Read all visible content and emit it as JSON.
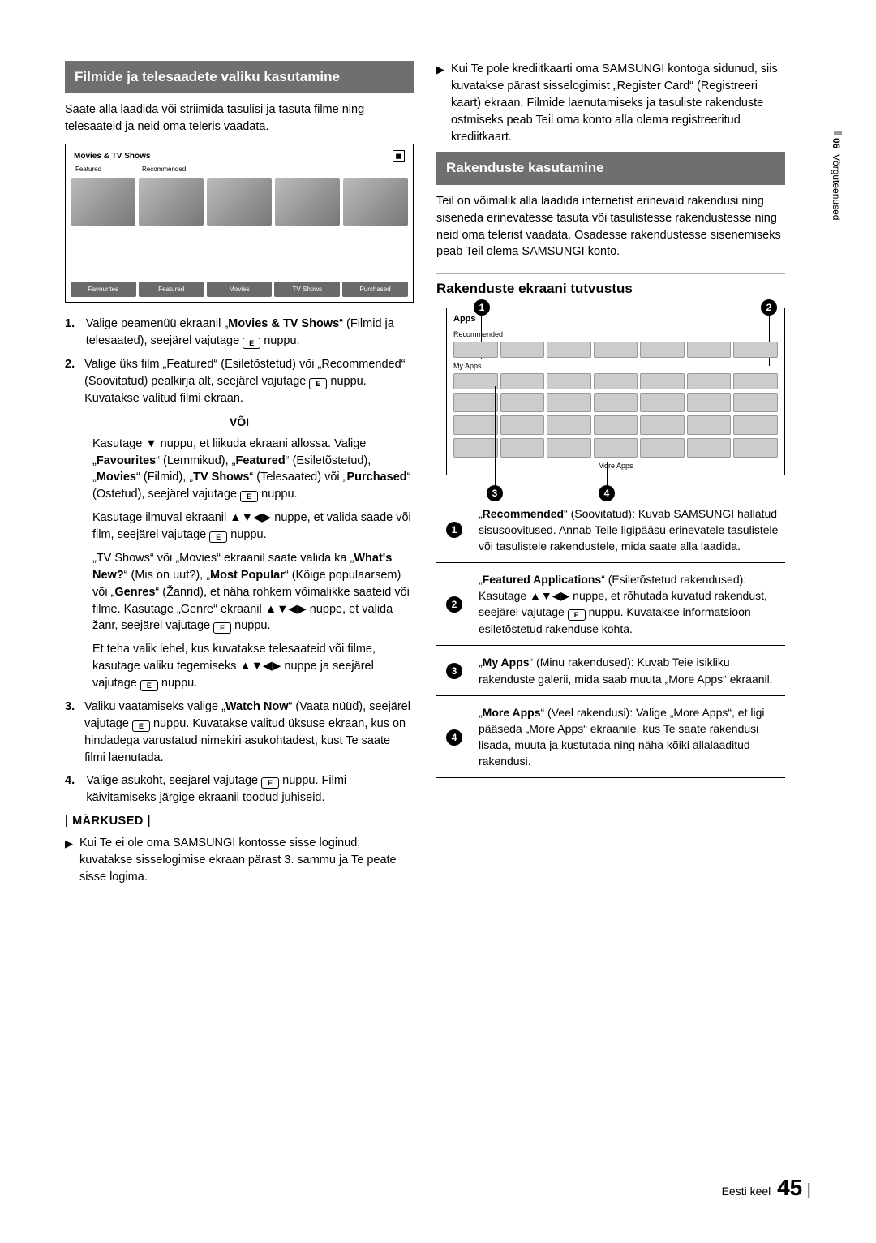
{
  "side": {
    "num": "06",
    "label": "Võrguteenused"
  },
  "left": {
    "h1": "Filmide ja telesaadete valiku kasutamine",
    "intro": "Saate alla laadida või striimida tasulisi ja tasuta filme ning telesaateid ja neid oma teleris vaadata.",
    "tv": {
      "title": "Movies & TV Shows",
      "subs": [
        "Featured",
        "Recommended"
      ],
      "tabs": [
        "Favourites",
        "Featured",
        "Movies",
        "TV Shows",
        "Purchased"
      ]
    },
    "voi": "VÕI",
    "s1a": "Valige peamenüü ekraanil „",
    "s1b": "Movies & TV Shows",
    "s1c": "“ (Filmid ja telesaated), seejärel vajutage ",
    "s1d": " nuppu.",
    "s2a": "Valige üks film „Featured“ (Esiletõstetud) või „Recommended“ (Soovitatud) pealkirja alt, seejärel vajutage ",
    "s2b": " nuppu. Kuvatakse valitud filmi ekraan.",
    "p2a": "Kasutage ▼ nuppu, et liikuda ekraani allossa. Valige „",
    "p2b": "Favourites",
    "p2c": "“ (Lemmikud), „",
    "p2d": "Featured",
    "p2e": "“ (Esiletõstetud), „",
    "p2f": "Movies",
    "p2g": "“ (Filmid), „",
    "p2h": "TV Shows",
    "p2i": "“ (Telesaated) või „",
    "p2j": "Purchased",
    "p2k": "“ (Ostetud), seejärel vajutage ",
    "p2l": " nuppu.",
    "p3a": "Kasutage ilmuval ekraanil ▲▼◀▶ nuppe, et valida saade või film, seejärel vajutage ",
    "p3b": " nuppu.",
    "p4a": "„TV Shows“ või „Movies“ ekraanil saate valida ka „",
    "p4b": "What's New?",
    "p4c": "“ (Mis on uut?), „",
    "p4d": "Most Popular",
    "p4e": "“ (Kõige populaarsem) või „",
    "p4f": "Genres",
    "p4g": "“ (Žanrid), et näha rohkem võimalikke saateid või filme. Kasutage „Genre“ ekraanil ▲▼◀▶ nuppe, et valida žanr, seejärel vajutage ",
    "p4h": " nuppu.",
    "p5a": "Et teha valik lehel, kus kuvatakse telesaateid või filme, kasutage valiku tegemiseks ▲▼◀▶ nuppe ja seejärel vajutage ",
    "p5b": " nuppu.",
    "s3a": "Valiku vaatamiseks valige „",
    "s3b": "Watch Now",
    "s3c": "“ (Vaata nüüd), seejärel vajutage ",
    "s3d": " nuppu. Kuvatakse valitud üksuse ekraan, kus on hindadega varustatud nimekiri asukohtadest, kust Te saate filmi laenutada.",
    "s4a": "Valige asukoht, seejärel vajutage ",
    "s4b": " nuppu. Filmi käivitamiseks järgige ekraanil toodud juhiseid.",
    "notes": "| MÄRKUSED |",
    "n1": "Kui Te ei ole oma SAMSUNGI kontosse sisse loginud, kuvatakse sisselogimise ekraan pärast 3. sammu ja Te peate sisse logima."
  },
  "right": {
    "n2": "Kui Te pole krediitkaarti oma SAMSUNGI kontoga sidunud, siis kuvatakse pärast sisselogimist „Register Card“ (Registreeri kaart) ekraan. Filmide laenutamiseks ja tasuliste rakenduste ostmiseks peab Teil oma konto alla olema registreeritud krediitkaart.",
    "h2": "Rakenduste kasutamine",
    "intro2": "Teil on võimalik alla laadida internetist erinevaid rakendusi ning siseneda erinevatesse tasuta või tasulistesse rakendustesse ning neid oma telerist vaadata. Osadesse rakendustesse sisenemiseks peab Teil olema SAMSUNGI konto.",
    "sub": "Rakenduste ekraani tutvustus",
    "app": {
      "title": "Apps",
      "rec": "Recommended",
      "my": "My Apps",
      "more": "More Apps"
    },
    "legend": [
      {
        "n": "1",
        "t": "„<b>Recommended</b>“ (Soovitatud): Kuvab SAMSUNGI hallatud sisusoovitused. Annab Teile ligipääsu erinevatele tasulistele või tasulistele rakendustele, mida saate alla laadida."
      },
      {
        "n": "2",
        "t": "„<b>Featured Applications</b>“ (Esiletõstetud rakendused): Kasutage ▲▼◀▶ nuppe, et rõhutada kuvatud rakendust, seejärel vajutage <span class='ebtn'></span> nuppu. Kuvatakse informatsioon esiletõstetud rakenduse kohta."
      },
      {
        "n": "3",
        "t": "„<b>My Apps</b>“ (Minu rakendused): Kuvab Teie isikliku rakenduste galerii, mida saab muuta „More Apps“ ekraanil."
      },
      {
        "n": "4",
        "t": "„<b>More Apps</b>“ (Veel rakendusi): Valige „More Apps“, et ligi pääseda „More Apps“ ekraanile, kus Te saate rakendusi lisada, muuta ja kustutada ning näha kõiki allalaaditud rakendusi."
      }
    ]
  },
  "footer": {
    "lang": "Eesti keel",
    "page": "45"
  }
}
